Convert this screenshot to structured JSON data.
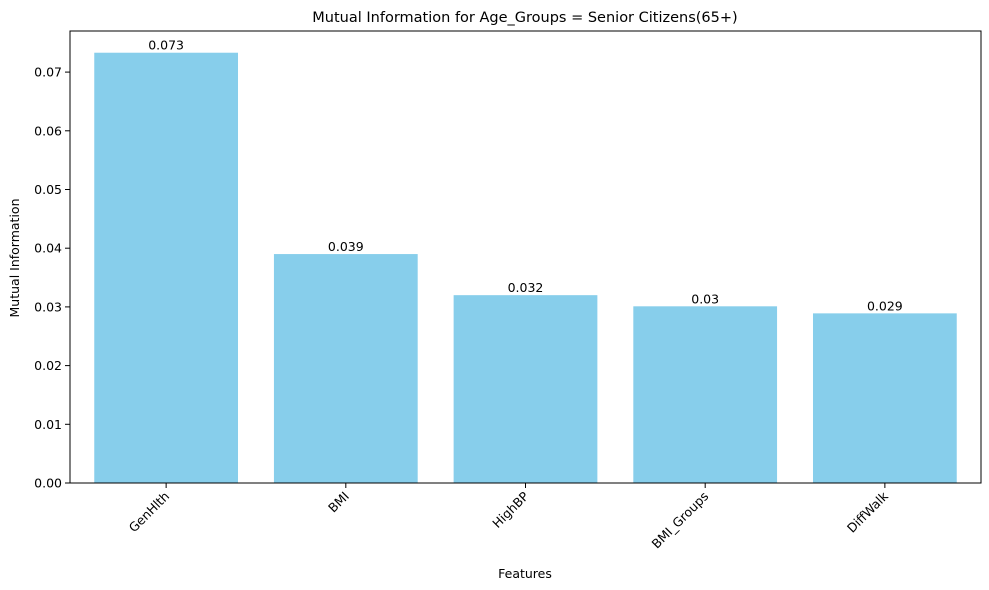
{
  "chart_data": {
    "type": "bar",
    "title": "Mutual Information for Age_Groups = Senior Citizens(65+)",
    "xlabel": "Features",
    "ylabel": "Mutual Information",
    "categories": [
      "GenHlth",
      "BMI",
      "HighBP",
      "BMI_Groups",
      "DiffWalk"
    ],
    "values": [
      0.0733,
      0.039,
      0.032,
      0.0301,
      0.0289
    ],
    "data_labels": [
      "0.073",
      "0.039",
      "0.032",
      "0.03",
      "0.029"
    ],
    "yticks": [
      0.0,
      0.01,
      0.02,
      0.03,
      0.04,
      0.05,
      0.06,
      0.07
    ],
    "ytick_labels": [
      "0.00",
      "0.01",
      "0.02",
      "0.03",
      "0.04",
      "0.05",
      "0.06",
      "0.07"
    ],
    "ylim": [
      0,
      0.077
    ],
    "xtick_rotation": 45,
    "grid": false,
    "bar_color": "#87CEEB"
  }
}
